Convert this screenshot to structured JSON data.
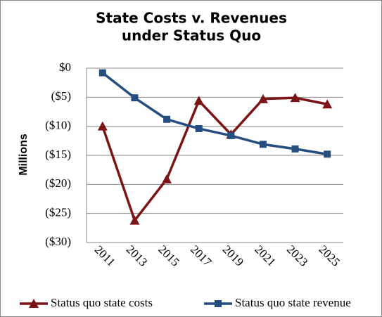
{
  "chart_data": {
    "type": "line",
    "title": [
      "State Costs v. Revenues",
      "under Status Quo"
    ],
    "y_label": "Millions",
    "categories": [
      "2011",
      "2013",
      "2015",
      "2017",
      "2019",
      "2021",
      "2023",
      "2025"
    ],
    "series": [
      {
        "name": "Status quo state costs",
        "color": "#7b1416",
        "marker": "triangle",
        "values": [
          -10.0,
          -26.2,
          -19.1,
          -5.6,
          -11.4,
          -5.3,
          -5.1,
          -6.2
        ]
      },
      {
        "name": "Status quo state revenue",
        "color": "#254d80",
        "marker": "square",
        "values": [
          -0.8,
          -5.1,
          -8.8,
          -10.4,
          -11.6,
          -13.1,
          -13.9,
          -14.8
        ]
      }
    ],
    "ylim": [
      -30,
      0
    ],
    "yticks": [
      {
        "value": -30,
        "label": "($30)"
      },
      {
        "value": -25,
        "label": "($25)"
      },
      {
        "value": -20,
        "label": "($20)"
      },
      {
        "value": -15,
        "label": "($15)"
      },
      {
        "value": -10,
        "label": "($10)"
      },
      {
        "value": -5,
        "label": "($5)"
      },
      {
        "value": 0,
        "label": "$0"
      }
    ],
    "grid": true
  }
}
